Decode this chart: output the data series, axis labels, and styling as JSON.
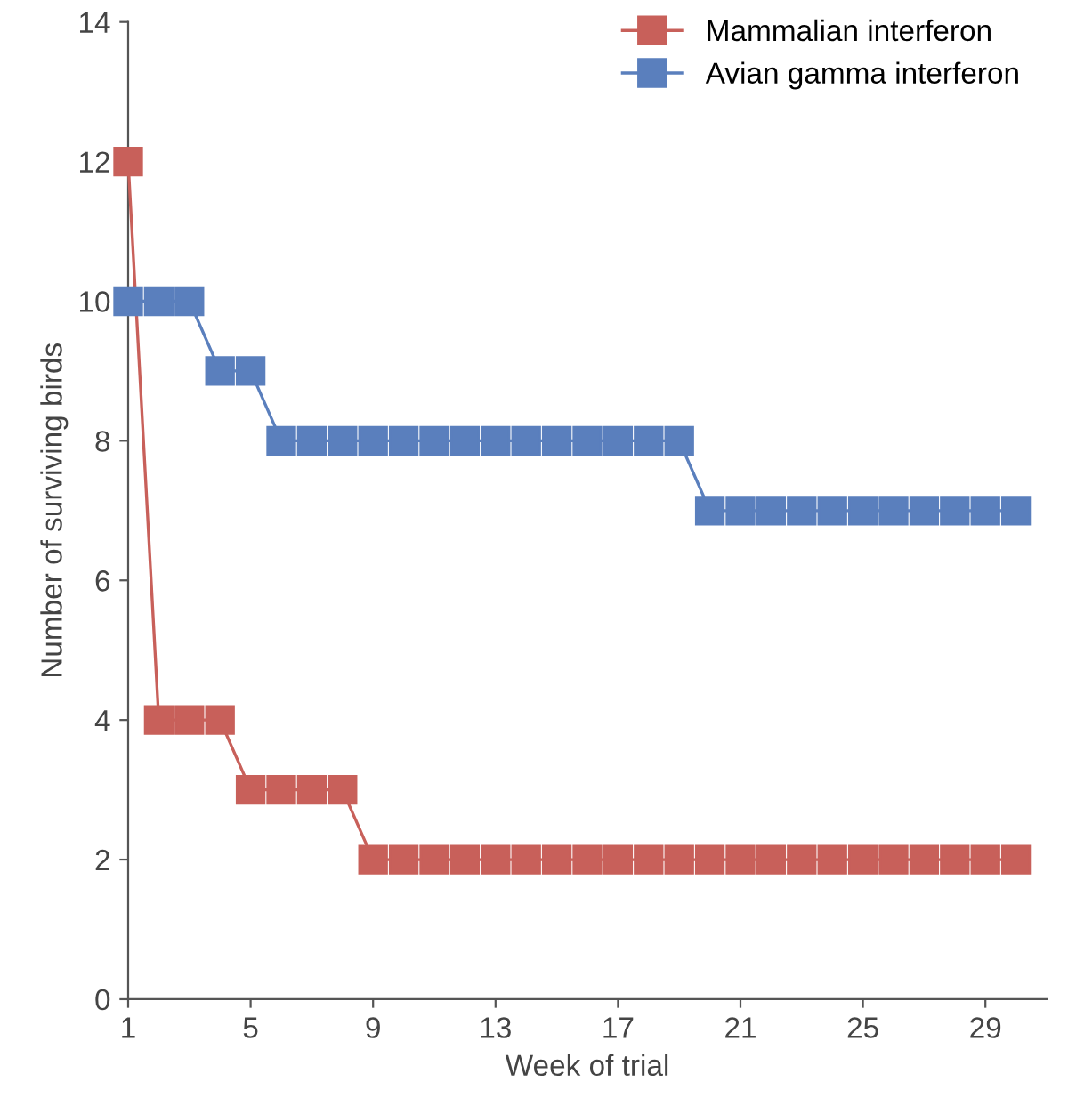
{
  "chart_data": {
    "type": "line",
    "xlabel": "Week of trial",
    "ylabel": "Number of surviving birds",
    "x": [
      1,
      2,
      3,
      4,
      5,
      6,
      7,
      8,
      9,
      10,
      11,
      12,
      13,
      14,
      15,
      16,
      17,
      18,
      19,
      20,
      21,
      22,
      23,
      24,
      25,
      26,
      27,
      28,
      29,
      30
    ],
    "series": [
      {
        "name": "Mammalian interferon",
        "color": "#c8605a",
        "values": [
          12,
          4,
          4,
          4,
          3,
          3,
          3,
          3,
          2,
          2,
          2,
          2,
          2,
          2,
          2,
          2,
          2,
          2,
          2,
          2,
          2,
          2,
          2,
          2,
          2,
          2,
          2,
          2,
          2,
          2
        ]
      },
      {
        "name": "Avian gamma interferon",
        "color": "#5a7fbd",
        "values": [
          10,
          10,
          10,
          9,
          9,
          8,
          8,
          8,
          8,
          8,
          8,
          8,
          8,
          8,
          8,
          8,
          8,
          8,
          8,
          7,
          7,
          7,
          7,
          7,
          7,
          7,
          7,
          7,
          7,
          7
        ]
      }
    ],
    "xlim": [
      1,
      31
    ],
    "xticks": [
      1,
      5,
      9,
      13,
      17,
      21,
      25,
      29
    ],
    "ylim": [
      0,
      14
    ],
    "yticks": [
      0,
      2,
      4,
      6,
      8,
      10,
      12,
      14
    ],
    "grid": false,
    "legend": "top right",
    "marker": "square",
    "line_style": "solid"
  }
}
